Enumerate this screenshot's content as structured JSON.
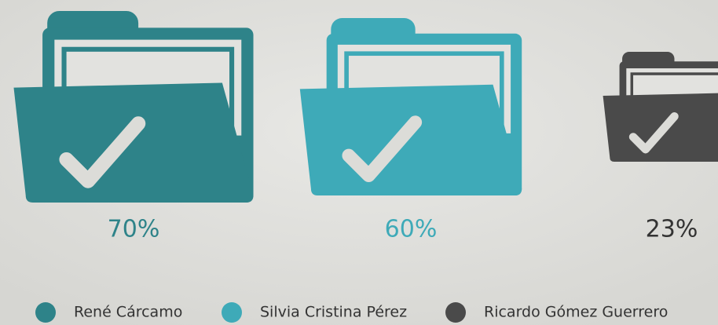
{
  "chart_data": {
    "type": "pictorial",
    "categories": [
      "René Cárcamo",
      "Silvia Cristina Pérez",
      "Ricardo Gómez Guerrero"
    ],
    "values": [
      70,
      60,
      23
    ],
    "value_labels": [
      "70%",
      "60%",
      "23%"
    ],
    "colors": [
      "#2e8389",
      "#3eaab8",
      "#4a4a4a"
    ],
    "legend": "bottom"
  }
}
